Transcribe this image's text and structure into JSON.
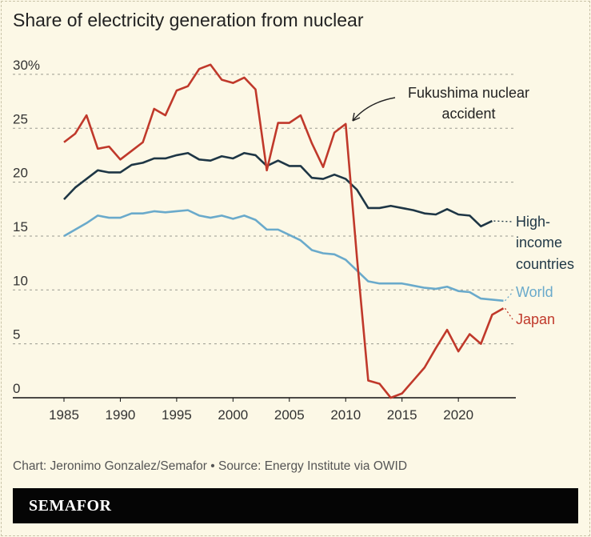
{
  "title": "Share of electricity generation from nuclear",
  "credit": "Chart: Jeronimo Gonzalez/Semafor • Source: Energy Institute via OWID",
  "logo": "SEMAFOR",
  "chart_data": {
    "type": "line",
    "title": "Share of electricity generation from nuclear",
    "ylim": [
      0,
      30
    ],
    "xlim": [
      1985,
      2024
    ],
    "yticks": [
      0,
      5,
      10,
      15,
      20,
      25,
      30
    ],
    "ytick_labels": [
      "0",
      "5",
      "10",
      "15",
      "20",
      "25",
      "30%"
    ],
    "xticks": [
      1985,
      1990,
      1995,
      2000,
      2005,
      2010,
      2015,
      2020
    ],
    "grid": true,
    "colors": {
      "Japan": "#c0392b",
      "High-income countries": "#1e3645",
      "World": "#6aaacb"
    },
    "annotation": {
      "text_lines": [
        "Fukushima nuclear",
        "accident"
      ],
      "x": 2010,
      "y": 25.4
    },
    "series": [
      {
        "name": "High-income countries",
        "label_lines": [
          "High-",
          "income",
          "countries"
        ],
        "x_start": 1985,
        "values": [
          18.4,
          19.5,
          20.3,
          21.1,
          20.9,
          20.9,
          21.6,
          21.8,
          22.2,
          22.2,
          22.5,
          22.7,
          22.1,
          22.0,
          22.4,
          22.2,
          22.7,
          22.5,
          21.5,
          22.0,
          21.5,
          21.5,
          20.4,
          20.3,
          20.7,
          20.3,
          19.3,
          17.6,
          17.6,
          17.8,
          17.6,
          17.4,
          17.1,
          17.0,
          17.5,
          17.0,
          16.9,
          15.9,
          16.4
        ]
      },
      {
        "name": "World",
        "label_lines": [
          "World"
        ],
        "x_start": 1985,
        "values": [
          15.0,
          15.6,
          16.2,
          16.9,
          16.7,
          16.7,
          17.1,
          17.1,
          17.3,
          17.2,
          17.3,
          17.4,
          16.9,
          16.7,
          16.9,
          16.6,
          16.9,
          16.5,
          15.6,
          15.6,
          15.1,
          14.6,
          13.7,
          13.4,
          13.3,
          12.8,
          11.8,
          10.8,
          10.6,
          10.6,
          10.6,
          10.4,
          10.2,
          10.1,
          10.3,
          9.9,
          9.8,
          9.2,
          9.1,
          9.0
        ]
      },
      {
        "name": "Japan",
        "label_lines": [
          "Japan"
        ],
        "x_start": 1985,
        "values": [
          23.7,
          24.5,
          26.2,
          23.1,
          23.3,
          22.1,
          22.9,
          23.7,
          26.8,
          26.2,
          28.5,
          28.9,
          30.5,
          30.9,
          29.5,
          29.2,
          29.7,
          28.6,
          21.1,
          25.5,
          25.5,
          26.2,
          23.6,
          21.4,
          24.6,
          25.4,
          13.0,
          1.6,
          1.3,
          0.0,
          0.4,
          1.6,
          2.8,
          4.6,
          6.3,
          4.3,
          5.9,
          5.0,
          7.7,
          8.3
        ]
      }
    ]
  }
}
